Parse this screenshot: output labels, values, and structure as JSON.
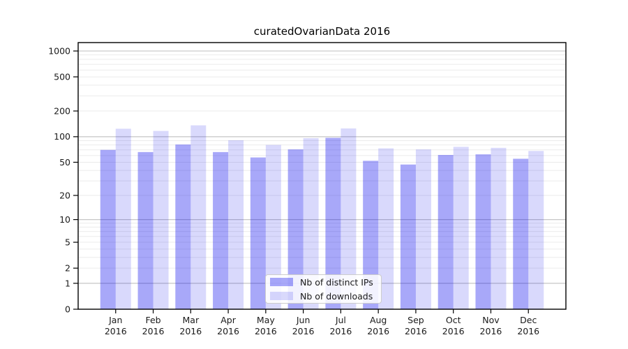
{
  "figure": {
    "background": "#ffffff"
  },
  "chart_data": {
    "type": "bar",
    "title": "curatedOvarianData 2016",
    "x": {
      "months": [
        "Jan",
        "Feb",
        "Mar",
        "Apr",
        "May",
        "Jun",
        "Jul",
        "Aug",
        "Sep",
        "Oct",
        "Nov",
        "Dec"
      ],
      "year": "2016"
    },
    "categories": [
      "Jan 2016",
      "Feb 2016",
      "Mar 2016",
      "Apr 2016",
      "May 2016",
      "Jun 2016",
      "Jul 2016",
      "Aug 2016",
      "Sep 2016",
      "Oct 2016",
      "Nov 2016",
      "Dec 2016"
    ],
    "series": [
      {
        "name": "Nb of distinct IPs",
        "color": "rgba(0,0,238,0.34)",
        "values": [
          70,
          66,
          81,
          66,
          57,
          71,
          97,
          52,
          47,
          61,
          62,
          55
        ]
      },
      {
        "name": "Nb of downloads",
        "color": "rgba(0,0,238,0.15)",
        "values": [
          124,
          117,
          136,
          91,
          80,
          96,
          125,
          73,
          71,
          76,
          74,
          68
        ]
      }
    ],
    "yscale": "log(value+1)",
    "ylim": [
      0,
      1250
    ],
    "yticks": [
      0,
      1,
      2,
      5,
      10,
      20,
      50,
      100,
      200,
      500,
      1000
    ],
    "grid": {
      "major_gridlines": [
        1,
        10,
        100,
        1000
      ],
      "minor_gridlines": [
        2,
        3,
        4,
        5,
        6,
        7,
        8,
        9,
        20,
        30,
        40,
        50,
        60,
        70,
        80,
        90,
        200,
        300,
        400,
        500,
        600,
        700,
        800,
        900
      ],
      "major_color": "#c6c6c6",
      "minor_color": "#ebebeb"
    },
    "colors": {
      "spine": "#000000",
      "tick_label": "#1a1a1a"
    },
    "legend_position": "lower center"
  }
}
